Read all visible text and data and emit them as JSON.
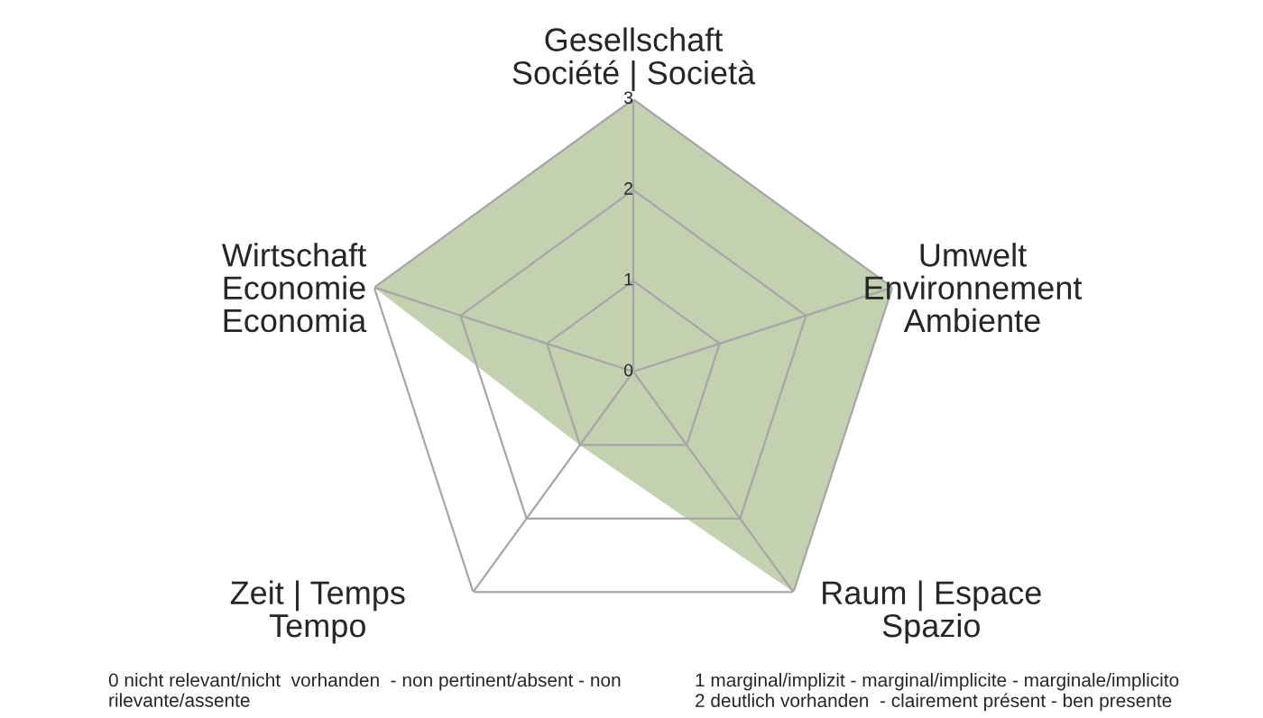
{
  "chart_data": {
    "type": "radar",
    "categories": [
      "Gesellschaft\nSociété | Società",
      "Umwelt\nEnvironnement\nAmbiente",
      "Raum | Espace\nSpazio",
      "Zeit | Temps\nTempo",
      "Wirtschaft\nEconomie\nEconomia"
    ],
    "series": [
      {
        "color": "#c3d1b0",
        "values": [
          3,
          3,
          3,
          1,
          3
        ]
      }
    ],
    "ylim": [
      0,
      3
    ],
    "yticks": [
      0,
      1,
      2,
      3
    ],
    "grid": true,
    "legend": false,
    "annotations": [
      "0 nicht relevant/nicht  vorhanden  - non pertinent/absent - non\nrilevante/assente",
      "1 marginal/implizit - marginal/implicite - marginale/implicito\n2 deutlich vorhanden  - clairement présent - ben presente"
    ]
  }
}
